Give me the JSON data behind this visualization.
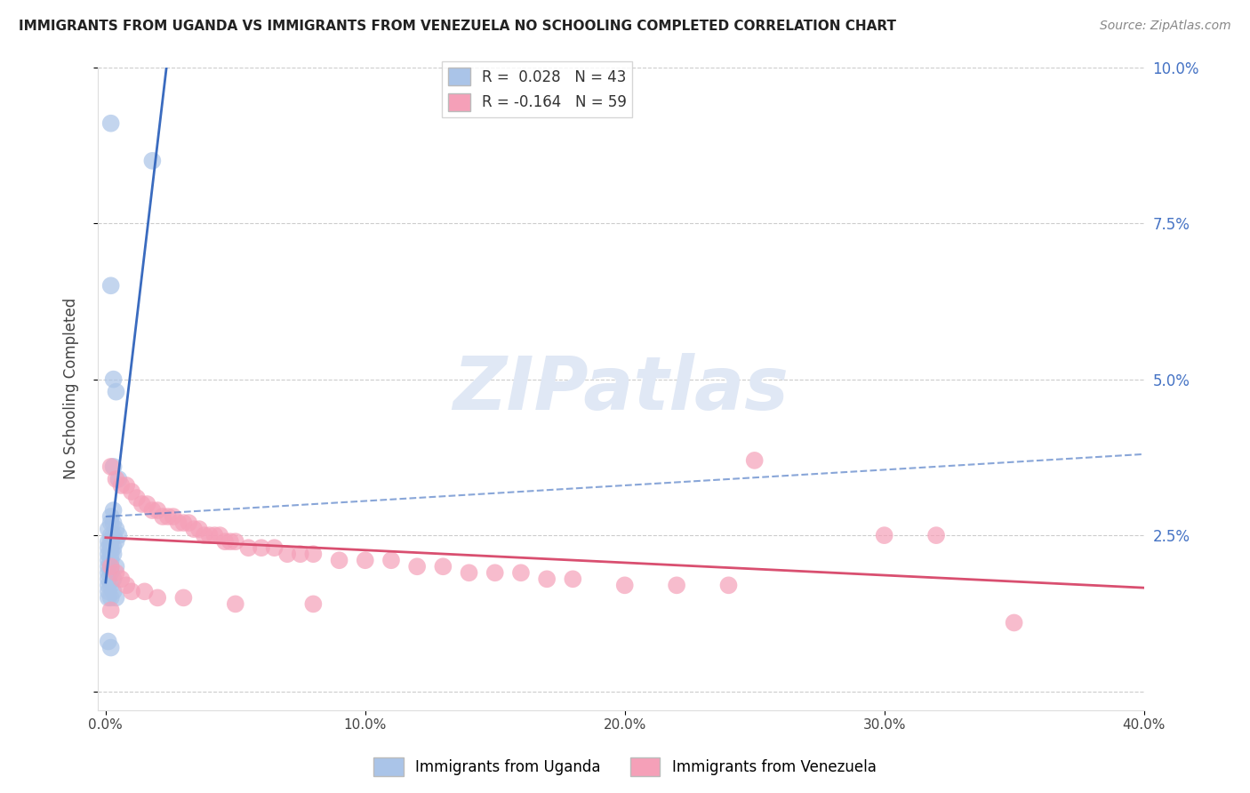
{
  "title": "IMMIGRANTS FROM UGANDA VS IMMIGRANTS FROM VENEZUELA NO SCHOOLING COMPLETED CORRELATION CHART",
  "source": "Source: ZipAtlas.com",
  "ylabel": "No Schooling Completed",
  "xlim": [
    0.0,
    0.4
  ],
  "ylim": [
    0.0,
    0.1
  ],
  "xticks": [
    0.0,
    0.1,
    0.2,
    0.3,
    0.4
  ],
  "yticks": [
    0.0,
    0.025,
    0.05,
    0.075,
    0.1
  ],
  "xtick_labels": [
    "0.0%",
    "10.0%",
    "20.0%",
    "30.0%",
    "40.0%"
  ],
  "ytick_labels": [
    "",
    "2.5%",
    "5.0%",
    "7.5%",
    "10.0%"
  ],
  "uganda_color": "#aac4e8",
  "venezuela_color": "#f5a0b8",
  "uganda_line_color": "#3a6bbf",
  "venezuela_line_color": "#d94f70",
  "uganda_R": 0.028,
  "uganda_N": 43,
  "venezuela_R": -0.164,
  "venezuela_N": 59,
  "legend_label_uganda": "Immigrants from Uganda",
  "legend_label_venezuela": "Immigrants from Venezuela",
  "uganda_points": [
    [
      0.002,
      0.091
    ],
    [
      0.018,
      0.085
    ],
    [
      0.002,
      0.065
    ],
    [
      0.003,
      0.05
    ],
    [
      0.004,
      0.048
    ],
    [
      0.003,
      0.036
    ],
    [
      0.005,
      0.034
    ],
    [
      0.003,
      0.029
    ],
    [
      0.002,
      0.028
    ],
    [
      0.002,
      0.027
    ],
    [
      0.003,
      0.027
    ],
    [
      0.004,
      0.026
    ],
    [
      0.001,
      0.026
    ],
    [
      0.003,
      0.025
    ],
    [
      0.005,
      0.025
    ],
    [
      0.002,
      0.025
    ],
    [
      0.001,
      0.024
    ],
    [
      0.002,
      0.024
    ],
    [
      0.004,
      0.024
    ],
    [
      0.001,
      0.023
    ],
    [
      0.002,
      0.023
    ],
    [
      0.003,
      0.023
    ],
    [
      0.001,
      0.022
    ],
    [
      0.002,
      0.022
    ],
    [
      0.003,
      0.022
    ],
    [
      0.001,
      0.021
    ],
    [
      0.002,
      0.021
    ],
    [
      0.001,
      0.02
    ],
    [
      0.002,
      0.02
    ],
    [
      0.004,
      0.02
    ],
    [
      0.001,
      0.019
    ],
    [
      0.002,
      0.019
    ],
    [
      0.001,
      0.018
    ],
    [
      0.003,
      0.018
    ],
    [
      0.001,
      0.017
    ],
    [
      0.002,
      0.017
    ],
    [
      0.001,
      0.016
    ],
    [
      0.003,
      0.016
    ],
    [
      0.001,
      0.015
    ],
    [
      0.002,
      0.015
    ],
    [
      0.004,
      0.015
    ],
    [
      0.001,
      0.008
    ],
    [
      0.002,
      0.007
    ]
  ],
  "venezuela_points": [
    [
      0.002,
      0.036
    ],
    [
      0.004,
      0.034
    ],
    [
      0.006,
      0.033
    ],
    [
      0.008,
      0.033
    ],
    [
      0.01,
      0.032
    ],
    [
      0.012,
      0.031
    ],
    [
      0.014,
      0.03
    ],
    [
      0.016,
      0.03
    ],
    [
      0.018,
      0.029
    ],
    [
      0.02,
      0.029
    ],
    [
      0.022,
      0.028
    ],
    [
      0.024,
      0.028
    ],
    [
      0.026,
      0.028
    ],
    [
      0.028,
      0.027
    ],
    [
      0.03,
      0.027
    ],
    [
      0.032,
      0.027
    ],
    [
      0.034,
      0.026
    ],
    [
      0.036,
      0.026
    ],
    [
      0.038,
      0.025
    ],
    [
      0.04,
      0.025
    ],
    [
      0.042,
      0.025
    ],
    [
      0.044,
      0.025
    ],
    [
      0.046,
      0.024
    ],
    [
      0.048,
      0.024
    ],
    [
      0.05,
      0.024
    ],
    [
      0.055,
      0.023
    ],
    [
      0.06,
      0.023
    ],
    [
      0.065,
      0.023
    ],
    [
      0.07,
      0.022
    ],
    [
      0.075,
      0.022
    ],
    [
      0.08,
      0.022
    ],
    [
      0.09,
      0.021
    ],
    [
      0.1,
      0.021
    ],
    [
      0.11,
      0.021
    ],
    [
      0.12,
      0.02
    ],
    [
      0.13,
      0.02
    ],
    [
      0.14,
      0.019
    ],
    [
      0.15,
      0.019
    ],
    [
      0.16,
      0.019
    ],
    [
      0.17,
      0.018
    ],
    [
      0.18,
      0.018
    ],
    [
      0.2,
      0.017
    ],
    [
      0.22,
      0.017
    ],
    [
      0.24,
      0.017
    ],
    [
      0.002,
      0.02
    ],
    [
      0.004,
      0.019
    ],
    [
      0.006,
      0.018
    ],
    [
      0.008,
      0.017
    ],
    [
      0.01,
      0.016
    ],
    [
      0.015,
      0.016
    ],
    [
      0.02,
      0.015
    ],
    [
      0.03,
      0.015
    ],
    [
      0.05,
      0.014
    ],
    [
      0.08,
      0.014
    ],
    [
      0.25,
      0.037
    ],
    [
      0.3,
      0.025
    ],
    [
      0.32,
      0.025
    ],
    [
      0.35,
      0.011
    ],
    [
      0.002,
      0.013
    ]
  ]
}
